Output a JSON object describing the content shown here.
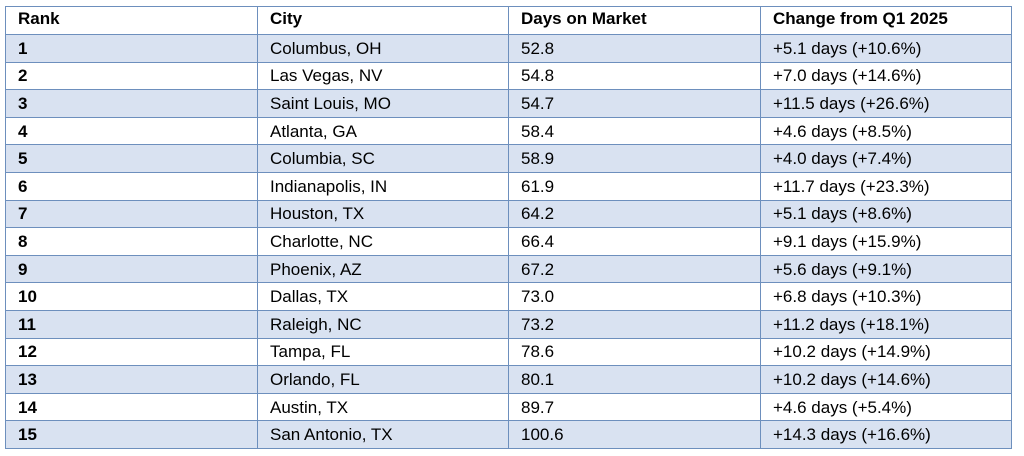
{
  "table": {
    "headers": [
      "Rank",
      "City",
      "Days on Market",
      "Change from Q1 2025"
    ],
    "rows": [
      {
        "rank": "1",
        "city": "Columbus, OH",
        "days": "52.8",
        "change": "+5.1 days (+10.6%)"
      },
      {
        "rank": "2",
        "city": "Las Vegas, NV",
        "days": "54.8",
        "change": "+7.0 days (+14.6%)"
      },
      {
        "rank": "3",
        "city": "Saint Louis, MO",
        "days": "54.7",
        "change": "+11.5 days (+26.6%)"
      },
      {
        "rank": "4",
        "city": "Atlanta, GA",
        "days": "58.4",
        "change": "+4.6 days (+8.5%)"
      },
      {
        "rank": "5",
        "city": "Columbia, SC",
        "days": "58.9",
        "change": "+4.0 days (+7.4%)"
      },
      {
        "rank": "6",
        "city": "Indianapolis, IN",
        "days": "61.9",
        "change": "+11.7 days (+23.3%)"
      },
      {
        "rank": "7",
        "city": "Houston, TX",
        "days": "64.2",
        "change": "+5.1 days (+8.6%)"
      },
      {
        "rank": "8",
        "city": "Charlotte, NC",
        "days": "66.4",
        "change": "+9.1 days (+15.9%)"
      },
      {
        "rank": "9",
        "city": "Phoenix, AZ",
        "days": "67.2",
        "change": "+5.6 days (+9.1%)"
      },
      {
        "rank": "10",
        "city": "Dallas, TX",
        "days": "73.0",
        "change": "+6.8 days (+10.3%)"
      },
      {
        "rank": "11",
        "city": "Raleigh, NC",
        "days": "73.2",
        "change": "+11.2 days (+18.1%)"
      },
      {
        "rank": "12",
        "city": "Tampa, FL",
        "days": "78.6",
        "change": "+10.2 days (+14.9%)"
      },
      {
        "rank": "13",
        "city": "Orlando, FL",
        "days": "80.1",
        "change": "+10.2 days (+14.6%)"
      },
      {
        "rank": "14",
        "city": "Austin, TX",
        "days": "89.7",
        "change": "+4.6 days (+5.4%)"
      },
      {
        "rank": "15",
        "city": "San Antonio, TX",
        "days": "100.6",
        "change": "+14.3 days (+16.6%)"
      }
    ]
  },
  "colors": {
    "border": "#6d8fbd",
    "band": "#d9e2f1",
    "background": "#ffffff"
  }
}
